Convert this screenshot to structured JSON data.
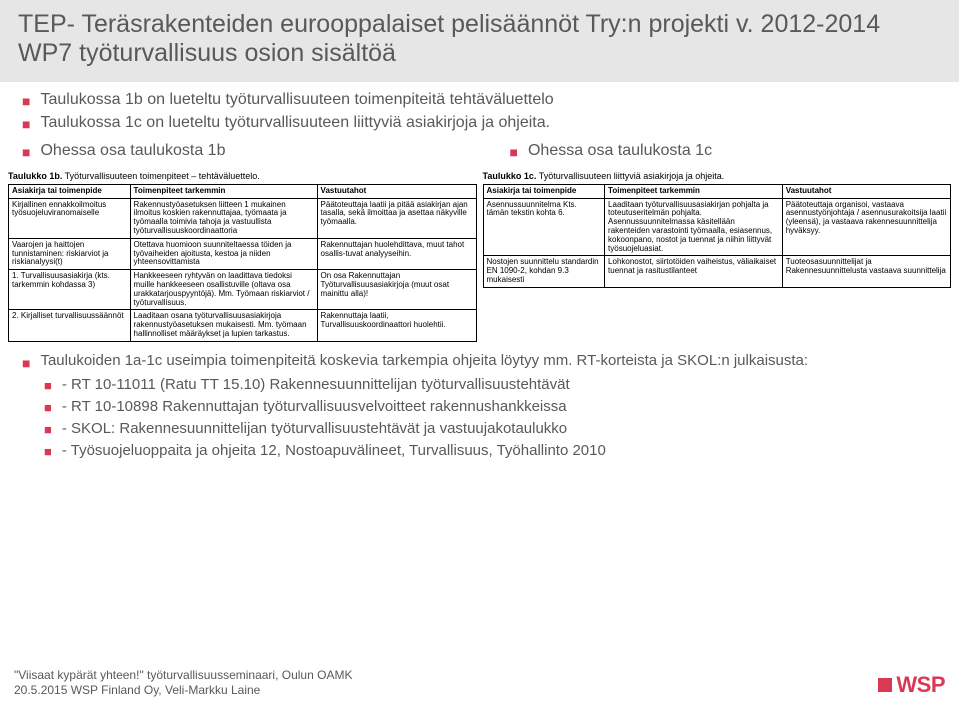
{
  "title": "TEP- Teräsrakenteiden eurooppalaiset pelisäännöt Try:n projekti v. 2012-2014 WP7 työturvallisuus osion sisältöä",
  "intro_bullets": [
    "Taulukossa 1b on lueteltu työturvallisuuteen toimenpiteitä tehtäväluettelo",
    "Taulukossa 1c on lueteltu työturvallisuuteen liittyviä asiakirjoja ja ohjeita."
  ],
  "col_left_label": "Ohessa osa taulukosta 1b",
  "col_right_label": "Ohessa osa taulukosta 1c",
  "table1b": {
    "caption_bold": "Taulukko 1b.",
    "caption_rest": " Työturvallisuuteen toimenpiteet – tehtäväluettelo.",
    "headers": [
      "Asiakirja tai toimenpide",
      "Toimenpiteet tarkemmin",
      "Vastuutahot"
    ],
    "col_widths": [
      "26%",
      "40%",
      "34%"
    ],
    "rows": [
      [
        "Kirjallinen ennakkoilmoitus työsuojeluviranomaiselle",
        "Rakennustyöasetuksen liitteen 1 mukainen ilmoitus koskien rakennuttajaa, työmaata ja työmaalla toimivia tahoja ja vastuullista työturvallisuuskoordinaattoria",
        "Päätoteuttaja laatii ja pitää asiakirjan ajan tasalla, sekä ilmoittaa ja asettaa näkyville työmaalla."
      ],
      [
        "Vaarojen ja haittojen tunnistaminen: riskiarviot ja riskianalyysi(t)",
        "Otettava huomioon suunniteltaessa töiden ja työvaiheiden ajoitusta, kestoa ja niiden yhteensovittamista",
        "Rakennuttajan huolehdittava, muut tahot osallis-tuvat analyyseihin."
      ],
      [
        "1. Turvallisuusasiakirja (kts. tarkemmin kohdassa 3)",
        "Hankkeeseen ryhtyvän on laadittava tiedoksi muille hankkeeseen osallistuville (oltava osa urakkatarjouspyyntöjä). Mm. Työmaan riskiarviot / työturvallisuus.",
        "On osa Rakennuttajan Työturvallisuusasiakirjoja (muut osat mainittu alla)!"
      ],
      [
        "2. Kirjalliset turvallisuussäännöt",
        "Laaditaan osana työturvallisuusasiakirjoja rakennustyöasetuksen mukaisesti. Mm. työmaan hallinnolliset määräykset ja lupien tarkastus.",
        "Rakennuttaja laatii, Turvallisuuskoordinaattori huolehtii."
      ]
    ]
  },
  "table1c": {
    "caption_bold": "Taulukko 1c.",
    "caption_rest": " Työturvallisuuteen liittyviä asiakirjoja ja ohjeita.",
    "headers": [
      "Asiakirja tai toimenpide",
      "Toimenpiteet tarkemmin",
      "Vastuutahot"
    ],
    "col_widths": [
      "26%",
      "38%",
      "36%"
    ],
    "rows": [
      [
        "Asennussuunnitelma\n\nKts. tämän tekstin kohta 6.",
        "Laaditaan työturvallisuusasiakirjan pohjalta ja toteutuseritelmän pohjalta. Asennussuunnitelmassa käsitellään rakenteiden varastointi työmaalla, esiasennus, kokoonpano, nostot ja tuennat ja niihin liittyvät työsuojeluasiat.",
        "Päätoteuttaja organisoi, vastaava asennustyönjohtaja / asennusurakoitsija laatii (yleensä), ja vastaava rakennesuunnittelija hyväksyy."
      ],
      [
        "Nostojen suunnittelu standardin EN 1090-2, kohdan 9.3 mukaisesti",
        "Lohkonostot, siirtotöiden vaiheistus, väliaikaiset tuennat ja rasitustilanteet",
        "Tuoteosasuunnittelijat ja Rakennesuunnittelusta vastaava suunnittelija"
      ]
    ]
  },
  "lower_main": "Taulukoiden 1a-1c useimpia toimenpiteitä koskevia tarkempia ohjeita löytyy mm. RT-korteista ja SKOL:n julkaisusta:",
  "subs": [
    "- RT 10-11011 (Ratu TT 15.10) Rakennesuunnittelijan työturvallisuustehtävät",
    "- RT 10-10898 Rakennuttajan työturvallisuusvelvoitteet rakennushankkeissa",
    "- SKOL: Rakennesuunnittelijan työturvallisuustehtävät ja vastuujakotaulukko",
    "- Työsuojeluoppaita ja ohjeita 12, Nostoapuvälineet, Turvallisuus, Työhallinto 2010"
  ],
  "footer_line1": "\"Viisaat kypärät yhteen!\" työturvallisuusseminaari, Oulun OAMK",
  "footer_line2": "20.5.2015 WSP Finland Oy, Veli-Markku Laine",
  "logo_text": "WSP",
  "colors": {
    "accent": "#d93954",
    "title_bg": "#e6e6e6",
    "text_gray": "#595959"
  }
}
